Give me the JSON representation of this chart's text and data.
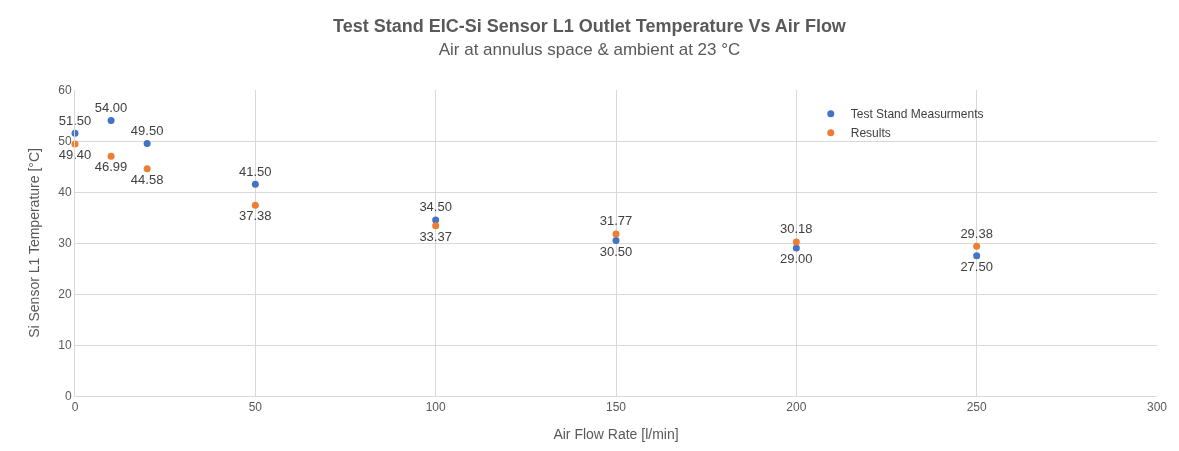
{
  "chart_data": {
    "type": "scatter",
    "title": "Test Stand EIC-Si Sensor L1 Outlet Temperature Vs Air Flow",
    "subtitle": "Air at annulus space & ambient at 23 °C",
    "xlabel": "Air Flow Rate [l/min]",
    "ylabel": "Si Sensor L1 Temperature [°C]",
    "x": [
      0,
      10,
      20,
      50,
      100,
      150,
      200,
      250
    ],
    "series": [
      {
        "name": "Test Stand Measurments",
        "color": "#4472c4",
        "values": [
          51.5,
          54,
          49.5,
          41.5,
          34.5,
          30.5,
          29,
          27.5
        ],
        "value_labels": [
          "51.50",
          "54.00",
          "49.50",
          "41.50",
          "34.50",
          "30.50",
          "29.00",
          "27.50"
        ]
      },
      {
        "name": "Results",
        "color": "#ed7d31",
        "values": [
          49.4,
          46.99,
          44.58,
          37.38,
          33.37,
          31.77,
          30.18,
          29.38
        ],
        "value_labels": [
          "49.40",
          "46.99",
          "44.58",
          "37.38",
          "33.37",
          "31.77",
          "30.18",
          "29.38"
        ]
      }
    ],
    "xlim": [
      0,
      300
    ],
    "xticks": [
      0,
      50,
      100,
      150,
      200,
      250,
      300
    ],
    "ylim": [
      0,
      60
    ],
    "yticks": [
      0,
      10,
      20,
      30,
      40,
      50,
      60
    ],
    "grid": true,
    "legend": "top right",
    "marker": "circle"
  }
}
